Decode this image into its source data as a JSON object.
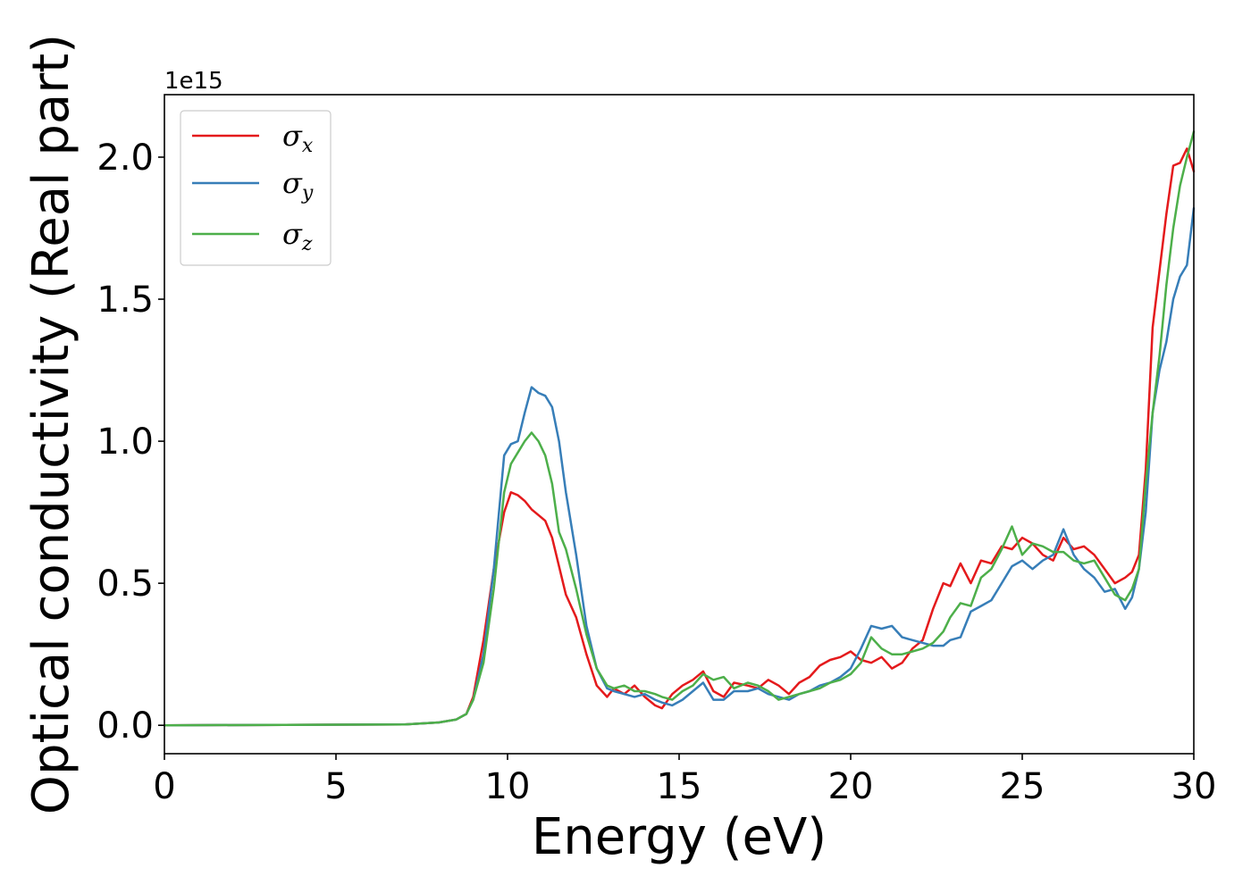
{
  "chart_data": {
    "type": "line",
    "xlabel": "Energy (eV)",
    "ylabel": "Optical conductivity (Real part)",
    "y_offset_label": "1e15",
    "xlim": [
      0,
      30
    ],
    "ylim": [
      -0.1,
      2.22
    ],
    "x_ticks": [
      0,
      5,
      10,
      15,
      20,
      25,
      30
    ],
    "x_tick_labels": [
      "0",
      "5",
      "10",
      "15",
      "20",
      "25",
      "30"
    ],
    "y_ticks": [
      0.0,
      0.5,
      1.0,
      1.5,
      2.0
    ],
    "y_tick_labels": [
      "0.0",
      "0.5",
      "1.0",
      "1.5",
      "2.0"
    ],
    "grid": false,
    "legend_position": "top-left",
    "series": [
      {
        "name": "σx",
        "legend_base": "σ",
        "legend_sub": "x",
        "color": "#e41a1c",
        "x": [
          0,
          7,
          8,
          8.5,
          8.8,
          9,
          9.3,
          9.6,
          9.9,
          10.1,
          10.3,
          10.5,
          10.7,
          10.9,
          11.1,
          11.3,
          11.5,
          11.7,
          12,
          12.3,
          12.6,
          12.9,
          13.1,
          13.4,
          13.7,
          14,
          14.3,
          14.5,
          14.8,
          15.1,
          15.4,
          15.7,
          16,
          16.3,
          16.6,
          17,
          17.3,
          17.6,
          17.9,
          18.2,
          18.5,
          18.8,
          19.1,
          19.4,
          19.7,
          20,
          20.3,
          20.6,
          20.9,
          21.2,
          21.5,
          21.8,
          22.1,
          22.4,
          22.7,
          22.9,
          23.2,
          23.5,
          23.8,
          24.1,
          24.4,
          24.7,
          25,
          25.3,
          25.6,
          25.9,
          26.2,
          26.5,
          26.8,
          27.1,
          27.4,
          27.7,
          28,
          28.2,
          28.4,
          28.6,
          28.8,
          29,
          29.2,
          29.4,
          29.6,
          29.8,
          30
        ],
        "y": [
          0,
          0.003,
          0.01,
          0.02,
          0.04,
          0.1,
          0.3,
          0.55,
          0.75,
          0.82,
          0.81,
          0.79,
          0.76,
          0.74,
          0.72,
          0.66,
          0.56,
          0.46,
          0.38,
          0.25,
          0.14,
          0.1,
          0.13,
          0.11,
          0.14,
          0.1,
          0.07,
          0.06,
          0.11,
          0.14,
          0.16,
          0.19,
          0.12,
          0.1,
          0.15,
          0.14,
          0.13,
          0.16,
          0.14,
          0.11,
          0.15,
          0.17,
          0.21,
          0.23,
          0.24,
          0.26,
          0.23,
          0.22,
          0.24,
          0.2,
          0.22,
          0.27,
          0.3,
          0.41,
          0.5,
          0.49,
          0.57,
          0.5,
          0.58,
          0.57,
          0.63,
          0.62,
          0.66,
          0.64,
          0.6,
          0.58,
          0.66,
          0.62,
          0.63,
          0.6,
          0.55,
          0.5,
          0.52,
          0.54,
          0.6,
          0.9,
          1.4,
          1.6,
          1.8,
          1.97,
          1.98,
          2.03,
          1.95
        ]
      },
      {
        "name": "σy",
        "legend_base": "σ",
        "legend_sub": "y",
        "color": "#377eb8",
        "x": [
          0,
          7,
          8,
          8.5,
          8.8,
          9,
          9.3,
          9.6,
          9.9,
          10.1,
          10.3,
          10.5,
          10.7,
          10.9,
          11.1,
          11.3,
          11.5,
          11.7,
          12,
          12.3,
          12.6,
          12.9,
          13.1,
          13.4,
          13.7,
          14,
          14.3,
          14.5,
          14.8,
          15.1,
          15.4,
          15.7,
          16,
          16.3,
          16.6,
          17,
          17.3,
          17.6,
          17.9,
          18.2,
          18.5,
          18.8,
          19.1,
          19.4,
          19.7,
          20,
          20.3,
          20.6,
          20.9,
          21.2,
          21.5,
          21.8,
          22.1,
          22.4,
          22.7,
          22.9,
          23.2,
          23.5,
          23.8,
          24.1,
          24.4,
          24.7,
          25,
          25.3,
          25.6,
          25.9,
          26.2,
          26.5,
          26.8,
          27.1,
          27.4,
          27.7,
          28,
          28.2,
          28.4,
          28.6,
          28.8,
          29,
          29.2,
          29.4,
          29.6,
          29.8,
          30
        ],
        "y": [
          0,
          0.003,
          0.01,
          0.02,
          0.04,
          0.09,
          0.25,
          0.55,
          0.95,
          0.99,
          1.0,
          1.1,
          1.19,
          1.17,
          1.16,
          1.12,
          1.0,
          0.82,
          0.6,
          0.35,
          0.2,
          0.13,
          0.12,
          0.11,
          0.1,
          0.11,
          0.09,
          0.08,
          0.07,
          0.09,
          0.12,
          0.15,
          0.09,
          0.09,
          0.12,
          0.12,
          0.13,
          0.11,
          0.1,
          0.09,
          0.11,
          0.12,
          0.14,
          0.15,
          0.17,
          0.2,
          0.27,
          0.35,
          0.34,
          0.35,
          0.31,
          0.3,
          0.29,
          0.28,
          0.28,
          0.3,
          0.31,
          0.4,
          0.42,
          0.44,
          0.5,
          0.56,
          0.58,
          0.55,
          0.58,
          0.6,
          0.69,
          0.6,
          0.55,
          0.52,
          0.47,
          0.48,
          0.41,
          0.45,
          0.55,
          0.75,
          1.1,
          1.25,
          1.35,
          1.5,
          1.58,
          1.62,
          1.82
        ]
      },
      {
        "name": "σz",
        "legend_base": "σ",
        "legend_sub": "z",
        "color": "#4daf4a",
        "x": [
          0,
          7,
          8,
          8.5,
          8.8,
          9,
          9.3,
          9.6,
          9.9,
          10.1,
          10.3,
          10.5,
          10.7,
          10.9,
          11.1,
          11.3,
          11.5,
          11.7,
          12,
          12.3,
          12.6,
          12.9,
          13.1,
          13.4,
          13.7,
          14,
          14.3,
          14.5,
          14.8,
          15.1,
          15.4,
          15.7,
          16,
          16.3,
          16.6,
          17,
          17.3,
          17.6,
          17.9,
          18.2,
          18.5,
          18.8,
          19.1,
          19.4,
          19.7,
          20,
          20.3,
          20.6,
          20.9,
          21.2,
          21.5,
          21.8,
          22.1,
          22.4,
          22.7,
          22.9,
          23.2,
          23.5,
          23.8,
          24.1,
          24.4,
          24.7,
          25,
          25.3,
          25.6,
          25.9,
          26.2,
          26.5,
          26.8,
          27.1,
          27.4,
          27.7,
          28,
          28.2,
          28.4,
          28.6,
          28.8,
          29,
          29.2,
          29.4,
          29.6,
          29.8,
          30
        ],
        "y": [
          0,
          0.003,
          0.01,
          0.02,
          0.04,
          0.09,
          0.22,
          0.48,
          0.82,
          0.92,
          0.96,
          1.0,
          1.03,
          1.0,
          0.95,
          0.85,
          0.68,
          0.62,
          0.48,
          0.32,
          0.2,
          0.14,
          0.13,
          0.14,
          0.12,
          0.12,
          0.11,
          0.1,
          0.09,
          0.12,
          0.14,
          0.18,
          0.16,
          0.17,
          0.13,
          0.15,
          0.14,
          0.12,
          0.09,
          0.1,
          0.11,
          0.12,
          0.13,
          0.15,
          0.16,
          0.18,
          0.22,
          0.31,
          0.27,
          0.25,
          0.25,
          0.26,
          0.27,
          0.29,
          0.33,
          0.38,
          0.43,
          0.42,
          0.52,
          0.55,
          0.62,
          0.7,
          0.6,
          0.64,
          0.63,
          0.61,
          0.61,
          0.58,
          0.57,
          0.58,
          0.52,
          0.46,
          0.44,
          0.48,
          0.55,
          0.85,
          1.1,
          1.3,
          1.55,
          1.75,
          1.9,
          2.0,
          2.09
        ]
      }
    ]
  }
}
